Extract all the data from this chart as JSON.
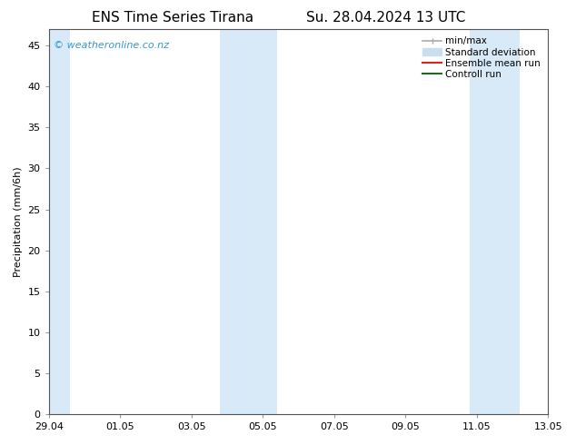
{
  "title_left": "ENS Time Series Tirana",
  "title_right": "Su. 28.04.2024 13 UTC",
  "ylabel": "Precipitation (mm/6h)",
  "ylim": [
    0,
    47
  ],
  "yticks": [
    0,
    5,
    10,
    15,
    20,
    25,
    30,
    35,
    40,
    45
  ],
  "xtick_labels": [
    "29.04",
    "01.05",
    "03.05",
    "05.05",
    "07.05",
    "09.05",
    "11.05",
    "13.05"
  ],
  "xtick_positions": [
    0,
    2,
    4,
    6,
    8,
    10,
    12,
    14
  ],
  "xlim": [
    0,
    14
  ],
  "shaded_bands": [
    {
      "x_start": -0.1,
      "x_end": 0.6
    },
    {
      "x_start": 4.8,
      "x_end": 6.4
    },
    {
      "x_start": 11.8,
      "x_end": 13.2
    }
  ],
  "shaded_color": "#d8eaf7",
  "background_color": "#ffffff",
  "watermark_text": "© weatheronline.co.nz",
  "watermark_color": "#3399cc",
  "legend_items": [
    {
      "label": "min/max",
      "color": "#aaaaaa",
      "lw": 1.2
    },
    {
      "label": "Standard deviation",
      "color": "#c8dff0",
      "lw": 8
    },
    {
      "label": "Ensemble mean run",
      "color": "#dd2222",
      "lw": 1.5
    },
    {
      "label": "Controll run",
      "color": "#226622",
      "lw": 1.5
    }
  ],
  "title_fontsize": 11,
  "axis_label_fontsize": 8,
  "tick_fontsize": 8,
  "legend_fontsize": 7.5
}
